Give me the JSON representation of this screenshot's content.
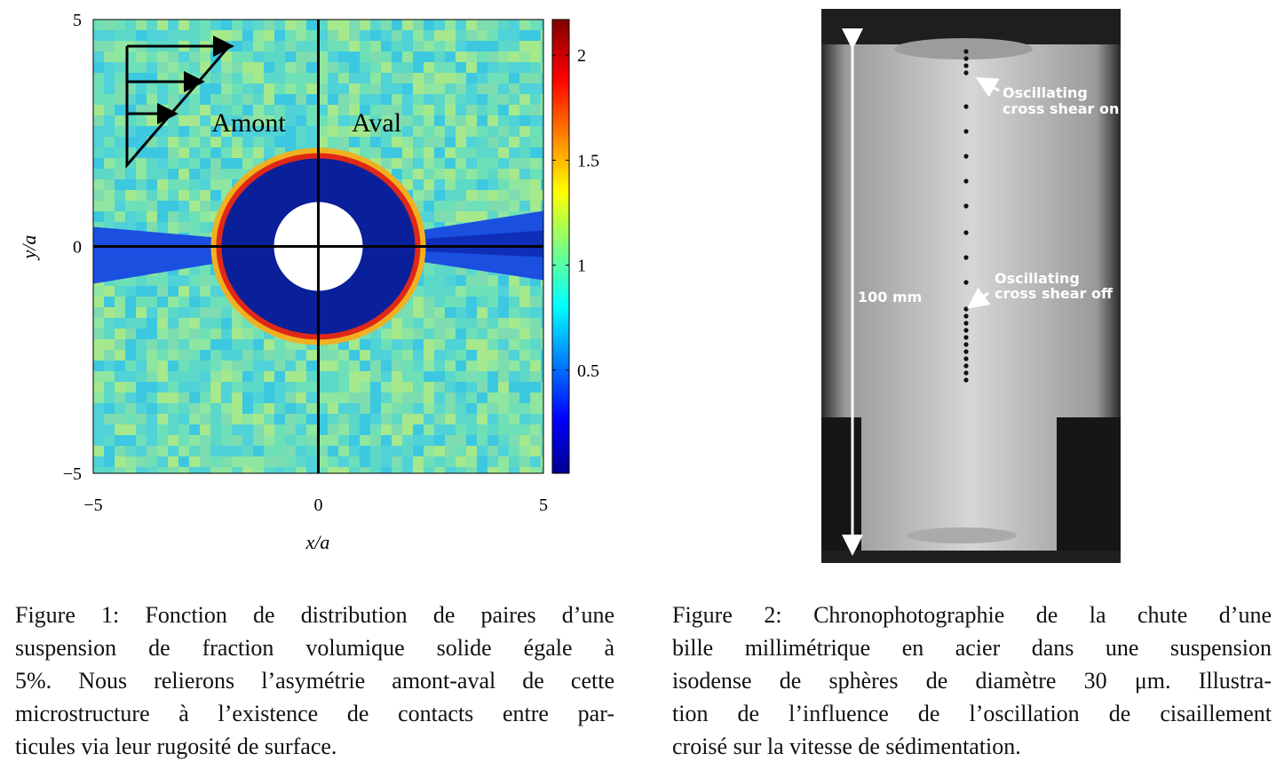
{
  "chart_data": {
    "type": "heatmap",
    "xlabel": "x/a",
    "ylabel": "y/a",
    "xlim": [
      -5,
      5
    ],
    "ylim": [
      -5,
      5
    ],
    "xticks": [
      {
        "value": -5,
        "label": "−5"
      },
      0,
      5
    ],
    "yticks": [
      {
        "value": -5,
        "label": "−5"
      },
      0,
      5
    ],
    "colorbar": {
      "lim": [
        0,
        2.17
      ],
      "ticks": [
        0.5,
        1,
        1.5,
        2
      ]
    },
    "annotations": [
      "Amont",
      "Aval"
    ]
  },
  "figure1_caption": [
    "Figure 1: Fonction de distribution de paires d’une",
    "suspension de fraction volumique solide égale à",
    "5%. Nous relierons l’asymétrie amont-aval de cette",
    "microstructure à l’existence de contacts entre par-",
    "ticules via leur rugosité de surface."
  ],
  "figure2": {
    "annotations": [
      [
        "Oscillating",
        "cross shear on"
      ],
      [
        "Oscillating",
        "cross shear off"
      ]
    ],
    "scale_label": "100 mm"
  },
  "figure2_caption": [
    "Figure 2: Chronophotographie de la chute d’une",
    "bille millimétrique en acier dans une suspension",
    "isodense de sphères de diamètre 30 μm. Illustra-",
    "tion de l’influence de l’oscillation de cisaillement",
    "croisé sur la vitesse de sédimentation."
  ]
}
